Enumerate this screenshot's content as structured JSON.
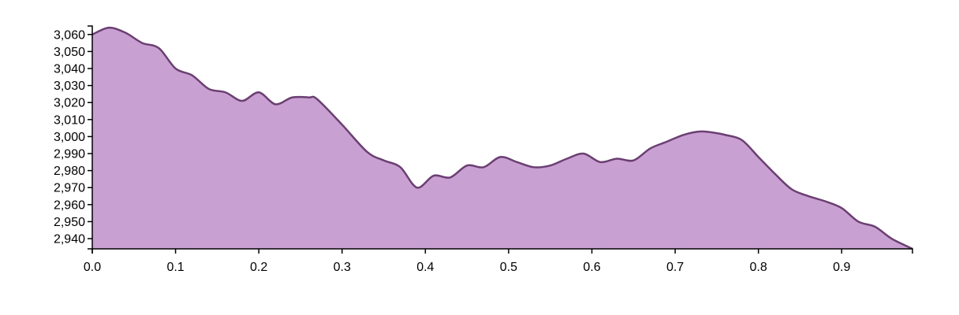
{
  "chart_data": {
    "type": "area",
    "title": "",
    "xlabel": "",
    "ylabel": "",
    "xlim": [
      0,
      0.985
    ],
    "ylim": [
      2934,
      3065
    ],
    "grid": false,
    "legend": "none",
    "x_ticks": [
      0,
      0.1,
      0.2,
      0.3,
      0.4,
      0.5,
      0.6,
      0.7,
      0.8,
      0.9
    ],
    "x_tick_labels": [
      "0.0",
      "0.1",
      "0.2",
      "0.3",
      "0.4",
      "0.5",
      "0.6",
      "0.7",
      "0.8",
      "0.9"
    ],
    "y_ticks": [
      2940,
      2950,
      2960,
      2970,
      2980,
      2990,
      3000,
      3010,
      3020,
      3030,
      3040,
      3050,
      3060
    ],
    "y_tick_labels": [
      "2,940",
      "2,950",
      "2,960",
      "2,970",
      "2,980",
      "2,990",
      "3,000",
      "3,010",
      "3,020",
      "3,030",
      "3,040",
      "3,050",
      "3,060"
    ],
    "colors": {
      "fill": "#c9a0d2",
      "stroke": "#6b3f72"
    },
    "series": [
      {
        "x": [
          0,
          0.02,
          0.04,
          0.06,
          0.08,
          0.1,
          0.12,
          0.14,
          0.16,
          0.18,
          0.2,
          0.22,
          0.24,
          0.26,
          0.27,
          0.3,
          0.33,
          0.35,
          0.37,
          0.39,
          0.41,
          0.43,
          0.45,
          0.47,
          0.49,
          0.51,
          0.53,
          0.55,
          0.57,
          0.59,
          0.61,
          0.63,
          0.65,
          0.67,
          0.69,
          0.71,
          0.73,
          0.75,
          0.76,
          0.78,
          0.8,
          0.82,
          0.84,
          0.86,
          0.88,
          0.9,
          0.92,
          0.94,
          0.96,
          0.985
        ],
        "y": [
          3060,
          3064,
          3061,
          3055,
          3052,
          3040,
          3036,
          3028,
          3026,
          3021,
          3026,
          3019,
          3023,
          3023,
          3022,
          3007,
          2991,
          2986,
          2982,
          2970,
          2977,
          2976,
          2983,
          2982,
          2988,
          2985,
          2982,
          2983,
          2987,
          2990,
          2985,
          2987,
          2986,
          2993,
          2997,
          3001,
          3003,
          3002,
          3001,
          2998,
          2988,
          2978,
          2969,
          2965,
          2962,
          2958,
          2950,
          2947,
          2940,
          2934
        ]
      }
    ]
  }
}
